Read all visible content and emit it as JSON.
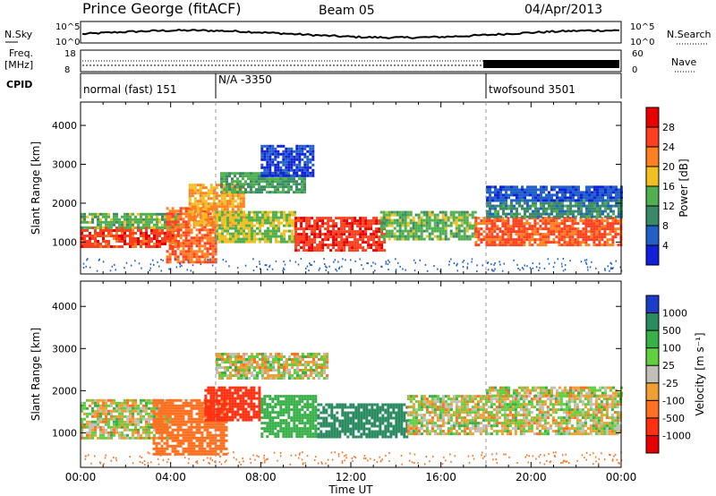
{
  "header": {
    "station": "Prince George (fitACF)",
    "beam": "Beam 05",
    "date": "04/Apr/2013"
  },
  "strips": {
    "nsky_label": "N.Sky",
    "nsearch_label": "N.Search",
    "freq_label_line1": "Freq.",
    "freq_label_line2": "[MHz]",
    "nave_label": "Nave",
    "cpid_label": "CPID",
    "noise_ticks": [
      "10^5",
      "10^0"
    ],
    "freq_ticks": [
      "18",
      "8"
    ],
    "nave_ticks": [
      "60",
      "0"
    ],
    "cpid_segments": [
      {
        "label": "normal (fast) 151",
        "start_hour": 0
      },
      {
        "label": "N/A -3350",
        "start_hour": 6
      },
      {
        "label": "twofsound 3501",
        "start_hour": 18
      }
    ]
  },
  "axes": {
    "xlabel": "Time UT",
    "ylabel": "Slant Range [km]",
    "xticks": [
      "00:00",
      "04:00",
      "08:00",
      "12:00",
      "16:00",
      "20:00",
      "00:00"
    ],
    "yticks": [
      "1000",
      "2000",
      "3000",
      "4000"
    ]
  },
  "colorbars": {
    "power": {
      "title": "Power [dB]",
      "ticks": [
        "4",
        "8",
        "12",
        "16",
        "20",
        "24",
        "28"
      ],
      "colors": [
        "#1020d8",
        "#2060c8",
        "#3a8a6a",
        "#50b050",
        "#f0c020",
        "#ff8020",
        "#ff4020",
        "#e80000"
      ]
    },
    "velocity": {
      "title": "Velocity [m s⁻¹]",
      "ticks": [
        "1000",
        "500",
        "100",
        "25",
        "-25",
        "-100",
        "-500",
        "-1000"
      ],
      "colors": [
        "#1a3cc8",
        "#2a8a60",
        "#38b048",
        "#60d040",
        "#c0c0b8",
        "#f0a030",
        "#ff7020",
        "#ff3010",
        "#e80000"
      ]
    }
  },
  "chart_data": [
    {
      "type": "heatmap",
      "title": "Power [dB]",
      "xlabel": "Time UT",
      "ylabel": "Slant Range [km]",
      "xlim_hours": [
        0,
        24
      ],
      "ylim_km": [
        180,
        4600
      ],
      "color_scale": [
        0,
        30
      ],
      "bands": [
        {
          "t0": 0.0,
          "t1": 4.3,
          "r0": 850,
          "r1": 1400,
          "val": 26
        },
        {
          "t0": 0.0,
          "t1": 4.3,
          "r0": 1400,
          "r1": 1750,
          "val": 14
        },
        {
          "t0": 3.8,
          "t1": 6.0,
          "r0": 450,
          "r1": 1900,
          "val": 24
        },
        {
          "t0": 4.8,
          "t1": 7.2,
          "r0": 1400,
          "r1": 2500,
          "val": 20
        },
        {
          "t0": 6.2,
          "t1": 10.0,
          "r0": 2300,
          "r1": 2800,
          "val": 12
        },
        {
          "t0": 8.0,
          "t1": 10.3,
          "r0": 2700,
          "r1": 3500,
          "val": 4
        },
        {
          "t0": 6.0,
          "t1": 9.5,
          "r0": 1000,
          "r1": 1800,
          "val": 16
        },
        {
          "t0": 9.5,
          "t1": 13.5,
          "r0": 800,
          "r1": 1650,
          "val": 27
        },
        {
          "t0": 13.3,
          "t1": 17.5,
          "r0": 1100,
          "r1": 1800,
          "val": 14
        },
        {
          "t0": 17.5,
          "t1": 24.0,
          "r0": 900,
          "r1": 1650,
          "val": 25
        },
        {
          "t0": 18.0,
          "t1": 24.0,
          "r0": 1650,
          "r1": 2100,
          "val": 10
        },
        {
          "t0": 18.0,
          "t1": 24.0,
          "r0": 2100,
          "r1": 2450,
          "val": 5
        }
      ]
    },
    {
      "type": "heatmap",
      "title": "Velocity [m s⁻¹]",
      "xlabel": "Time UT",
      "ylabel": "Slant Range [km]",
      "xlim_hours": [
        0,
        24
      ],
      "ylim_km": [
        180,
        4600
      ],
      "color_scale": [
        -1000,
        1000
      ],
      "bands": [
        {
          "t0": 0.0,
          "t1": 4.0,
          "r0": 900,
          "r1": 1800,
          "val": 0
        },
        {
          "t0": 3.2,
          "t1": 6.5,
          "r0": 500,
          "r1": 1800,
          "val": -300
        },
        {
          "t0": 5.5,
          "t1": 8.0,
          "r0": 1300,
          "r1": 2100,
          "val": -700
        },
        {
          "t0": 6.0,
          "t1": 11.0,
          "r0": 2300,
          "r1": 2900,
          "val": 0
        },
        {
          "t0": 8.0,
          "t1": 10.5,
          "r0": 900,
          "r1": 1900,
          "val": 250
        },
        {
          "t0": 10.5,
          "t1": 14.5,
          "r0": 900,
          "r1": 1700,
          "val": 700
        },
        {
          "t0": 14.5,
          "t1": 24.0,
          "r0": 1000,
          "r1": 1900,
          "val": 0
        },
        {
          "t0": 18.0,
          "t1": 24.0,
          "r0": 1900,
          "r1": 2100,
          "val": 0
        }
      ]
    }
  ]
}
